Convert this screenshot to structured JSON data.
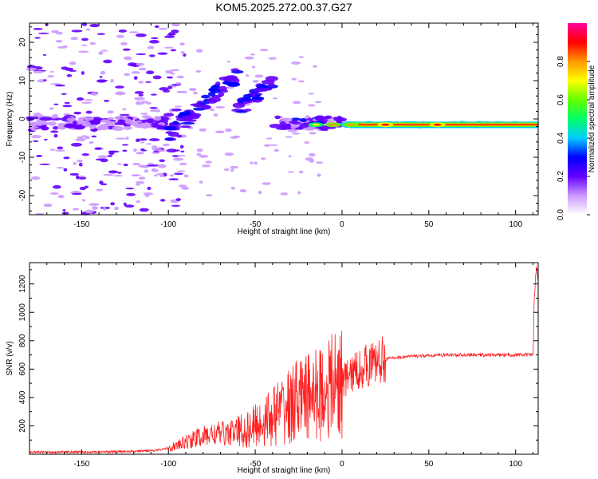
{
  "title": "KOM5.2025.272.00.37.G27",
  "chart_data": [
    {
      "type": "heatmap",
      "xlabel": "Height of straight line (km)",
      "ylabel": "Frequency (Hz)",
      "xlim": [
        -180,
        113
      ],
      "ylim": [
        -25,
        25
      ],
      "x_ticks": [
        -150,
        -100,
        -50,
        0,
        50,
        100
      ],
      "y_ticks": [
        -20,
        -10,
        0,
        10,
        20
      ],
      "colorbar": {
        "label": "Normalized spectral amplitude",
        "range": [
          0,
          1
        ],
        "ticks": [
          "0.0",
          "0.2",
          "0.4",
          "0.6",
          "0.8"
        ],
        "colors": [
          "#ffffff",
          "#cc99ff",
          "#6600ff",
          "#0000ff",
          "#00ccff",
          "#00ff66",
          "#66ff00",
          "#ffff00",
          "#ff9900",
          "#ff0000",
          "#ff0099"
        ]
      },
      "features": [
        {
          "x_range": [
            -180,
            -100
          ],
          "freq_center": -1,
          "amplitude": 0.15,
          "description_value": "scattered low amplitude"
        },
        {
          "x_range": [
            -100,
            -60
          ],
          "freq_start": -4,
          "freq_end": 12,
          "amplitude": 0.25
        },
        {
          "x_range": [
            -60,
            -40
          ],
          "freq_start": 2,
          "freq_end": 10,
          "amplitude": 0.25
        },
        {
          "x_range": [
            -40,
            0
          ],
          "freq_center": -1,
          "amplitude": 0.2
        },
        {
          "x_range": [
            0,
            113
          ],
          "freq_center": -1.5,
          "amplitude": 0.9
        }
      ]
    },
    {
      "type": "line",
      "xlabel": "Height of straight line (km)",
      "ylabel": "SNR (v/v)",
      "xlim": [
        -180,
        113
      ],
      "ylim": [
        0,
        1350
      ],
      "x_ticks": [
        -150,
        -100,
        -50,
        0,
        50,
        100
      ],
      "y_ticks": [
        200,
        400,
        600,
        800,
        1000,
        1200
      ],
      "color": "#ff2020",
      "series": [
        {
          "x": [
            -180,
            -150,
            -120,
            -105,
            -95,
            -85,
            -75,
            -65,
            -55,
            -45,
            -35,
            -25,
            -20,
            -15,
            -10,
            -5,
            0,
            5,
            10,
            15,
            20,
            25,
            30,
            40,
            50,
            60,
            70,
            80,
            90,
            100,
            110,
            111,
            112,
            113
          ],
          "values": [
            15,
            15,
            20,
            30,
            60,
            110,
            140,
            150,
            170,
            230,
            310,
            380,
            400,
            420,
            450,
            480,
            510,
            560,
            600,
            630,
            650,
            670,
            680,
            690,
            695,
            700,
            700,
            700,
            700,
            700,
            700,
            1200,
            1270,
            1230
          ]
        }
      ]
    }
  ]
}
